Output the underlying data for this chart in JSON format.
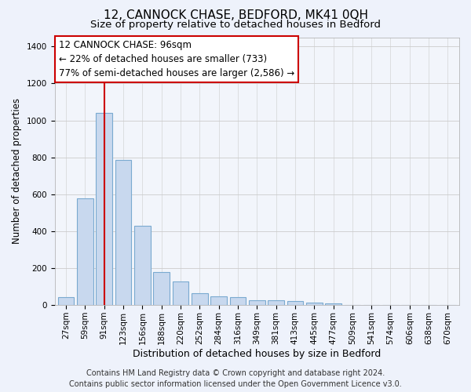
{
  "title": "12, CANNOCK CHASE, BEDFORD, MK41 0QH",
  "subtitle": "Size of property relative to detached houses in Bedford",
  "xlabel": "Distribution of detached houses by size in Bedford",
  "ylabel": "Number of detached properties",
  "categories": [
    "27sqm",
    "59sqm",
    "91sqm",
    "123sqm",
    "156sqm",
    "188sqm",
    "220sqm",
    "252sqm",
    "284sqm",
    "316sqm",
    "349sqm",
    "381sqm",
    "413sqm",
    "445sqm",
    "477sqm",
    "509sqm",
    "541sqm",
    "574sqm",
    "606sqm",
    "638sqm",
    "670sqm"
  ],
  "values": [
    45,
    578,
    1040,
    785,
    430,
    180,
    130,
    65,
    48,
    45,
    28,
    28,
    20,
    13,
    10,
    0,
    0,
    0,
    0,
    0,
    0
  ],
  "bar_color": "#c8d8ee",
  "bar_edge_color": "#7aaad0",
  "vline_x_index": 2,
  "vline_color": "#cc0000",
  "ylim": [
    0,
    1450
  ],
  "yticks": [
    0,
    200,
    400,
    600,
    800,
    1000,
    1200,
    1400
  ],
  "annotation_line1": "12 CANNOCK CHASE: 96sqm",
  "annotation_line2": "← 22% of detached houses are smaller (733)",
  "annotation_line3": "77% of semi-detached houses are larger (2,586) →",
  "annotation_box_color": "#ffffff",
  "annotation_box_edgecolor": "#cc0000",
  "footer_line1": "Contains HM Land Registry data © Crown copyright and database right 2024.",
  "footer_line2": "Contains public sector information licensed under the Open Government Licence v3.0.",
  "title_fontsize": 11,
  "subtitle_fontsize": 9.5,
  "xlabel_fontsize": 9,
  "ylabel_fontsize": 8.5,
  "tick_fontsize": 7.5,
  "footer_fontsize": 7,
  "annotation_fontsize": 8.5,
  "background_color": "#eef2fb",
  "plot_background_color": "#f2f5fb",
  "grid_color": "#cccccc"
}
